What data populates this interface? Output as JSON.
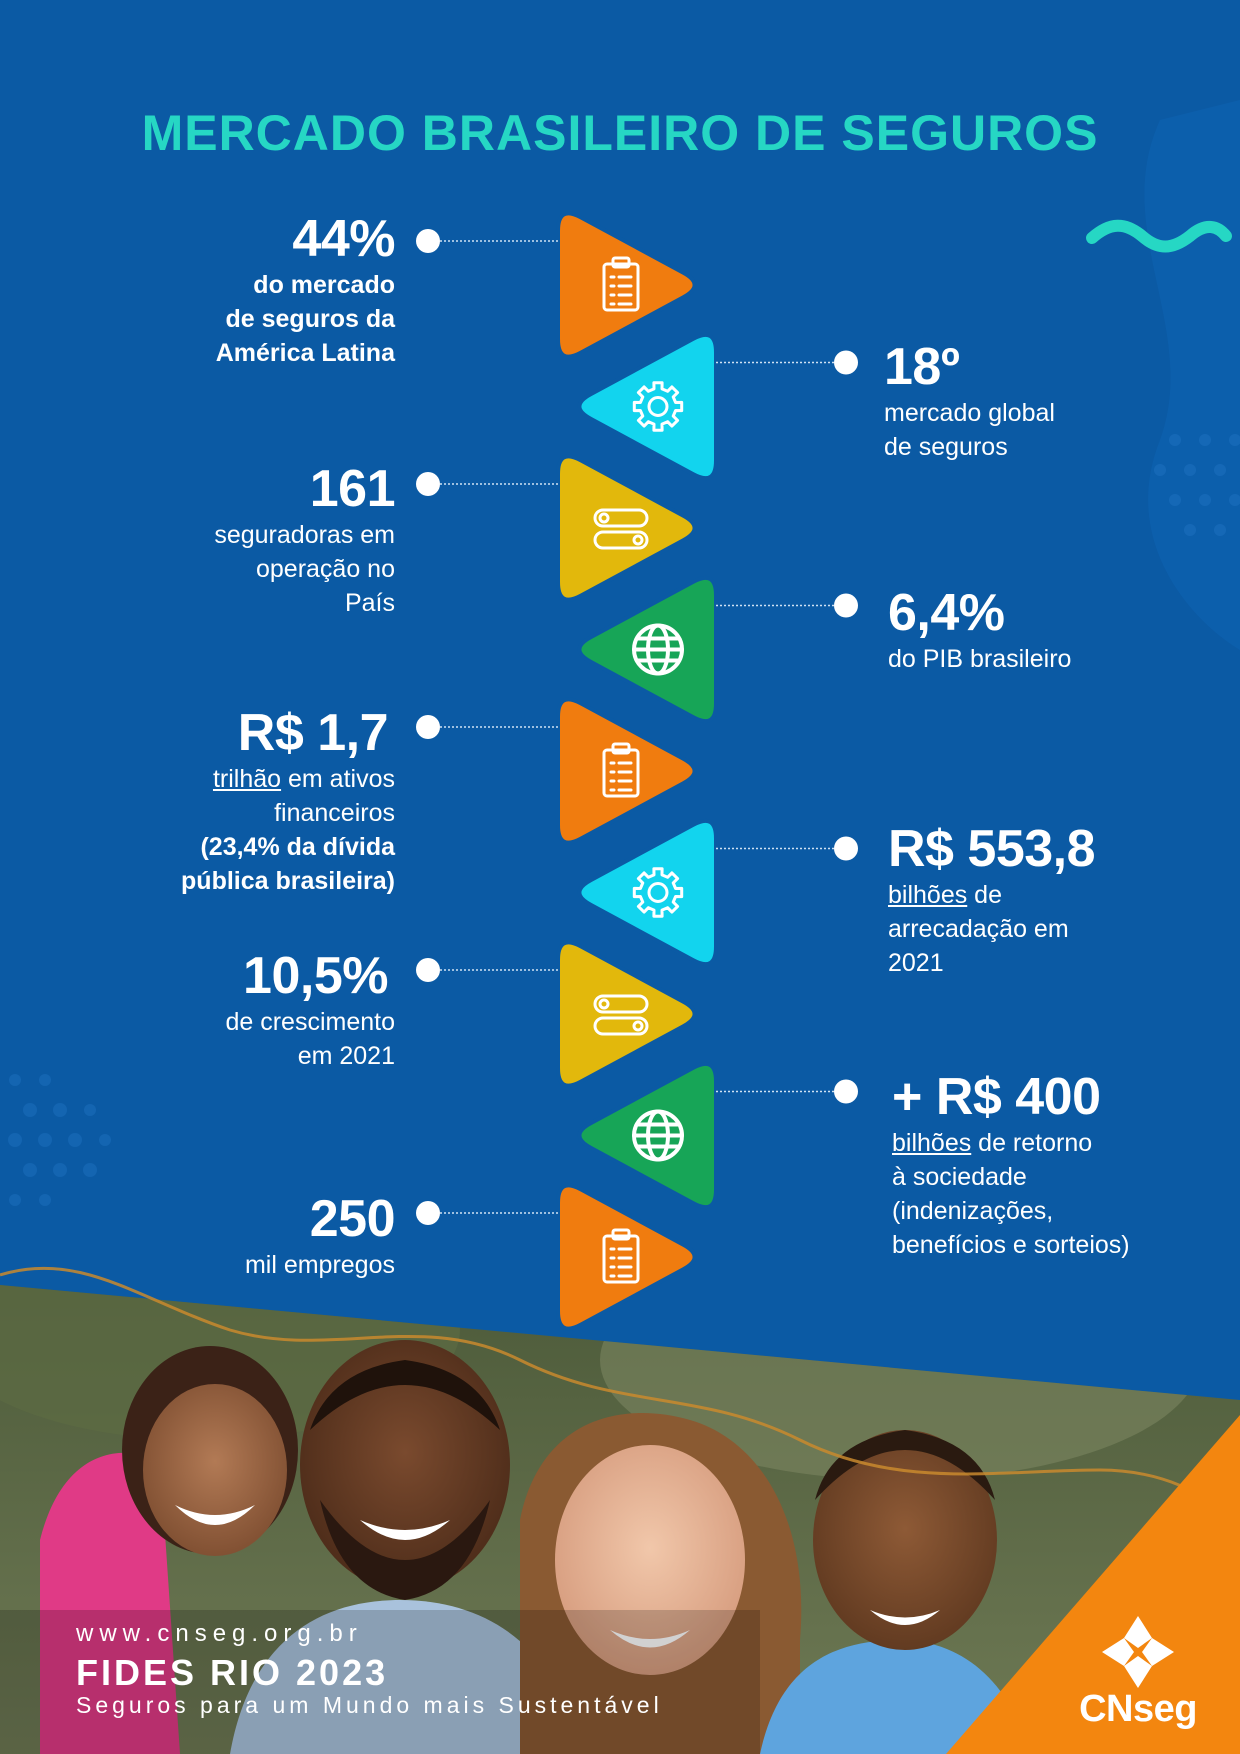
{
  "title": "MERCADO BRASILEIRO DE SEGUROS",
  "colors": {
    "background": "#0b5aa4",
    "title": "#26d7c4",
    "orange": "#f07c0f",
    "cyan": "#12d4ee",
    "yellow": "#e2b80c",
    "green": "#17a557",
    "brand_orange": "#f3860f"
  },
  "left_stats": [
    {
      "value": "44%",
      "lines": [
        "do mercado",
        "de seguros da",
        "América Latina"
      ]
    },
    {
      "value": "161",
      "lines": [
        "seguradoras em",
        "operação no",
        "País"
      ]
    },
    {
      "value": "R$ 1,7",
      "underline": "trilhão",
      "rest": " em ativos",
      "lines": [
        "financeiros "
      ],
      "bold_lines": [
        "(23,4% da dívida",
        "pública brasileira)"
      ]
    },
    {
      "value": "10,5%",
      "lines": [
        "de crescimento",
        "em 2021"
      ]
    },
    {
      "value": "250",
      "lines": [
        "mil empregos"
      ]
    }
  ],
  "right_stats": [
    {
      "value": "18º",
      "lines": [
        "mercado global",
        "de seguros"
      ]
    },
    {
      "value": "6,4%",
      "lines": [
        "do PIB brasileiro"
      ]
    },
    {
      "value": "R$ 553,8",
      "underline": "bilhões",
      "rest": " de",
      "lines": [
        "arrecadação em",
        "2021"
      ]
    },
    {
      "value": "+ R$ 400",
      "underline": "bilhões",
      "rest": " de retorno",
      "lines": [
        "à sociedade",
        "(indenizações,",
        "benefícios e sorteios)"
      ]
    }
  ],
  "triangle_icons": [
    "clipboard-icon",
    "gear-icon",
    "toggle-icon",
    "globe-icon",
    "clipboard-icon",
    "gear-icon",
    "toggle-icon",
    "globe-icon",
    "clipboard-icon"
  ],
  "photo": "family-photo",
  "footer": {
    "url": "www.cnseg.org.br",
    "event": "FIDES RIO 2023",
    "tagline": "Seguros para um Mundo mais Sustentável"
  },
  "brand": {
    "name": "CNseg",
    "logo_icon": "cnseg-logo-icon"
  }
}
